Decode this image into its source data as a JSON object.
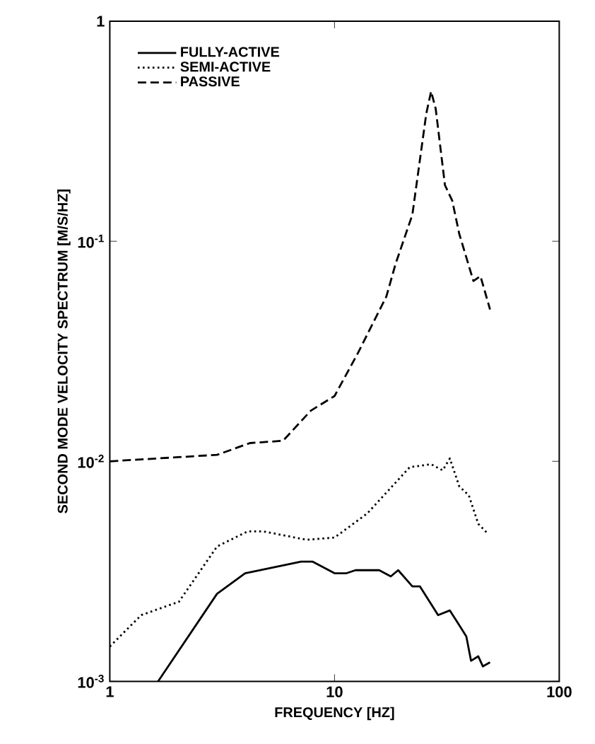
{
  "chart_data": {
    "type": "line",
    "xlabel": "FREQUENCY [HZ]",
    "ylabel": "SECOND MODE VELOCITY SPECTRUM [M/S/HZ]",
    "log": "xy",
    "xlim": [
      1,
      100
    ],
    "ylim": [
      0.001,
      1
    ],
    "xticks": [
      1,
      10,
      100
    ],
    "yticks": [
      {
        "value": 0.001,
        "label": "10$^{-3}$"
      },
      {
        "value": 0.01,
        "label": "10$^{-2}$"
      },
      {
        "value": 0.1,
        "label": "10$^{-1}$"
      },
      1
    ],
    "legend": "top left",
    "grid": false,
    "series": [
      {
        "name": "FULLY-ACTIVE",
        "color": "#000000",
        "line_style": "solid",
        "x": [
          1.64,
          3.0,
          4.0,
          7.1,
          8.0,
          10,
          11.3,
          12.4,
          15.8,
          17.8,
          19.2,
          22.2,
          24.0,
          28.9,
          32.6,
          35.9,
          38.6,
          40.5,
          43.6,
          45.7,
          49.2
        ],
        "values": [
          0.001,
          0.0025,
          0.0031,
          0.0035,
          0.0035,
          0.0031,
          0.0031,
          0.0032,
          0.0032,
          0.003,
          0.0032,
          0.0027,
          0.0027,
          0.002,
          0.0021,
          0.0018,
          0.0016,
          0.00124,
          0.0013,
          0.00117,
          0.00122
        ]
      },
      {
        "name": "SEMI-ACTIVE",
        "color": "#000000",
        "line_style": "dotted",
        "x": [
          1,
          1.38,
          2.03,
          3.0,
          4.1,
          4.85,
          7.5,
          10,
          14,
          21.6,
          26.9,
          30.3,
          32.6,
          35.9,
          39.6,
          43.6,
          48
        ],
        "values": [
          0.00144,
          0.002,
          0.0023,
          0.0041,
          0.0048,
          0.0048,
          0.0044,
          0.0045,
          0.0058,
          0.0094,
          0.0097,
          0.0091,
          0.0103,
          0.0077,
          0.007,
          0.0052,
          0.0047
        ]
      },
      {
        "name": "PASSIVE",
        "color": "#000000",
        "line_style": "dashed",
        "x": [
          1,
          3.0,
          4.2,
          5.9,
          7.85,
          10,
          12.7,
          17,
          18.7,
          22.2,
          25.6,
          26.9,
          28.2,
          31,
          33.4,
          35.9,
          41.5,
          44.6,
          49.2
        ],
        "values": [
          0.01,
          0.0107,
          0.0121,
          0.0124,
          0.017,
          0.0198,
          0.031,
          0.056,
          0.079,
          0.132,
          0.38,
          0.48,
          0.4,
          0.18,
          0.153,
          0.108,
          0.066,
          0.0695,
          0.049
        ]
      }
    ]
  }
}
